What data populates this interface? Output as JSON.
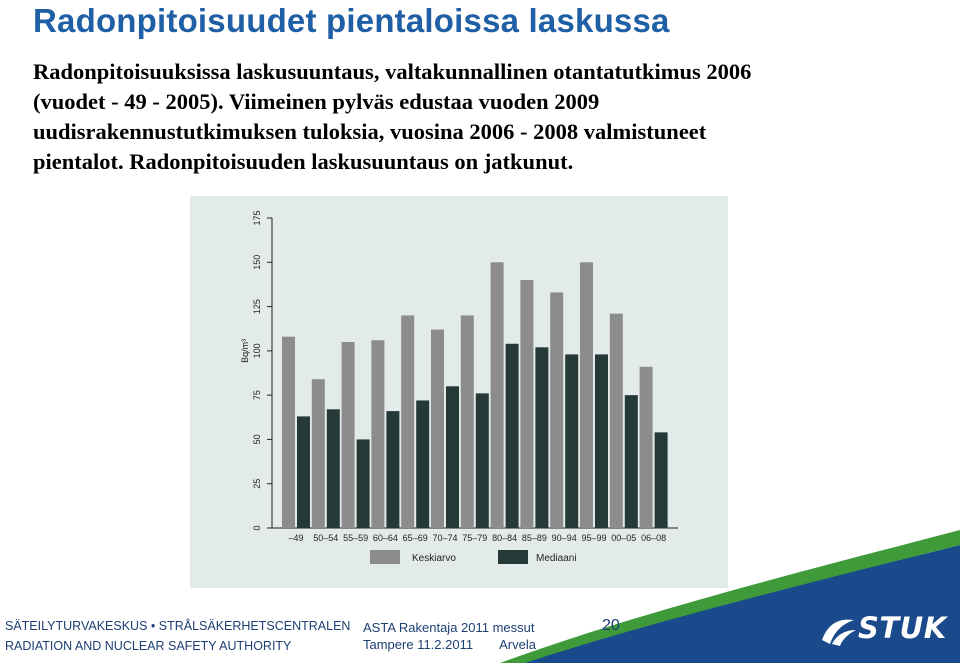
{
  "slide": {
    "title": "Radonpitoisuudet pientaloissa laskussa",
    "body_lines": [
      "Radonpitoisuuksissa laskusuuntaus, valtakunnallinen otantatutkimus 2006",
      "(vuodet - 49 - 2005). Viimeinen pylväs edustaa vuoden 2009",
      "uudisrakennustutkimuksen tuloksia, vuosina 2006 - 2008 valmistuneet",
      "pientalot.  Radonpitoisuuden laskusuuntaus on jatkunut."
    ]
  },
  "chart_data": {
    "type": "bar",
    "ylabel": "Bq/m³",
    "xlabel": "",
    "ylim": [
      0,
      175
    ],
    "yticks": [
      0,
      25,
      50,
      75,
      100,
      125,
      150,
      175
    ],
    "grid": false,
    "legend_position": "bottom",
    "categories": [
      "–49",
      "50–54",
      "55–59",
      "60–64",
      "65–69",
      "70–74",
      "75–79",
      "80–84",
      "85–89",
      "90–94",
      "95–99",
      "00–05",
      "06–08"
    ],
    "series": [
      {
        "name": "Keskiarvo",
        "color": "#8c8c8c",
        "values": [
          108,
          84,
          105,
          106,
          120,
          112,
          120,
          150,
          140,
          133,
          150,
          121,
          91
        ]
      },
      {
        "name": "Mediaani",
        "color": "#253a38",
        "values": [
          63,
          67,
          50,
          66,
          72,
          80,
          76,
          104,
          102,
          98,
          98,
          75,
          54
        ]
      }
    ]
  },
  "footer": {
    "org_line1": "SÄTEILYTURVAKESKUS • STRÅLSÄKERHETSCENTRALEN",
    "org_line2": "RADIATION AND NUCLEAR SAFETY AUTHORITY",
    "event_line1": "ASTA Rakentaja 2011 messut",
    "event_place_date": "Tampere 11.2.2011",
    "event_author": "Arvela",
    "page_number": "20",
    "logo_text": "STUK"
  },
  "colors": {
    "title": "#1f5fa5",
    "footer_text": "#1d3f73",
    "chart_background": "#e3ebe9",
    "swoosh_green": "#3f9a3a",
    "swoosh_blue": "#1a4a8c"
  }
}
